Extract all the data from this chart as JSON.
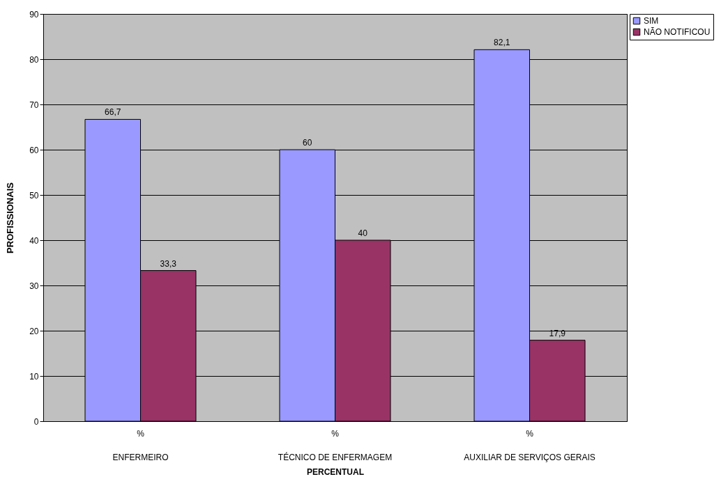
{
  "chart_data": {
    "type": "bar",
    "xlabel": "PERCENTUAL",
    "ylabel": "PROFISSIONAIS",
    "categories": [
      "%\nENFERMEIRO",
      "%\nTÉCNICO DE ENFERMAGEM",
      "%\nAUXILIAR DE SERVIÇOS GERAIS"
    ],
    "series": [
      {
        "name": "SIM",
        "color": "#9999ff",
        "values": [
          66.7,
          60,
          82.1
        ],
        "value_labels": [
          "66,7",
          "60",
          "82,1"
        ]
      },
      {
        "name": "NÃO NOTIFICOU",
        "color": "#993366",
        "values": [
          33.3,
          40,
          17.9
        ],
        "value_labels": [
          "33,3",
          "40",
          "17,9"
        ]
      }
    ],
    "ylim": [
      0,
      90
    ],
    "yticks": [
      0,
      10,
      20,
      30,
      40,
      50,
      60,
      70,
      80,
      90
    ],
    "grid": "y",
    "legend": "right"
  }
}
